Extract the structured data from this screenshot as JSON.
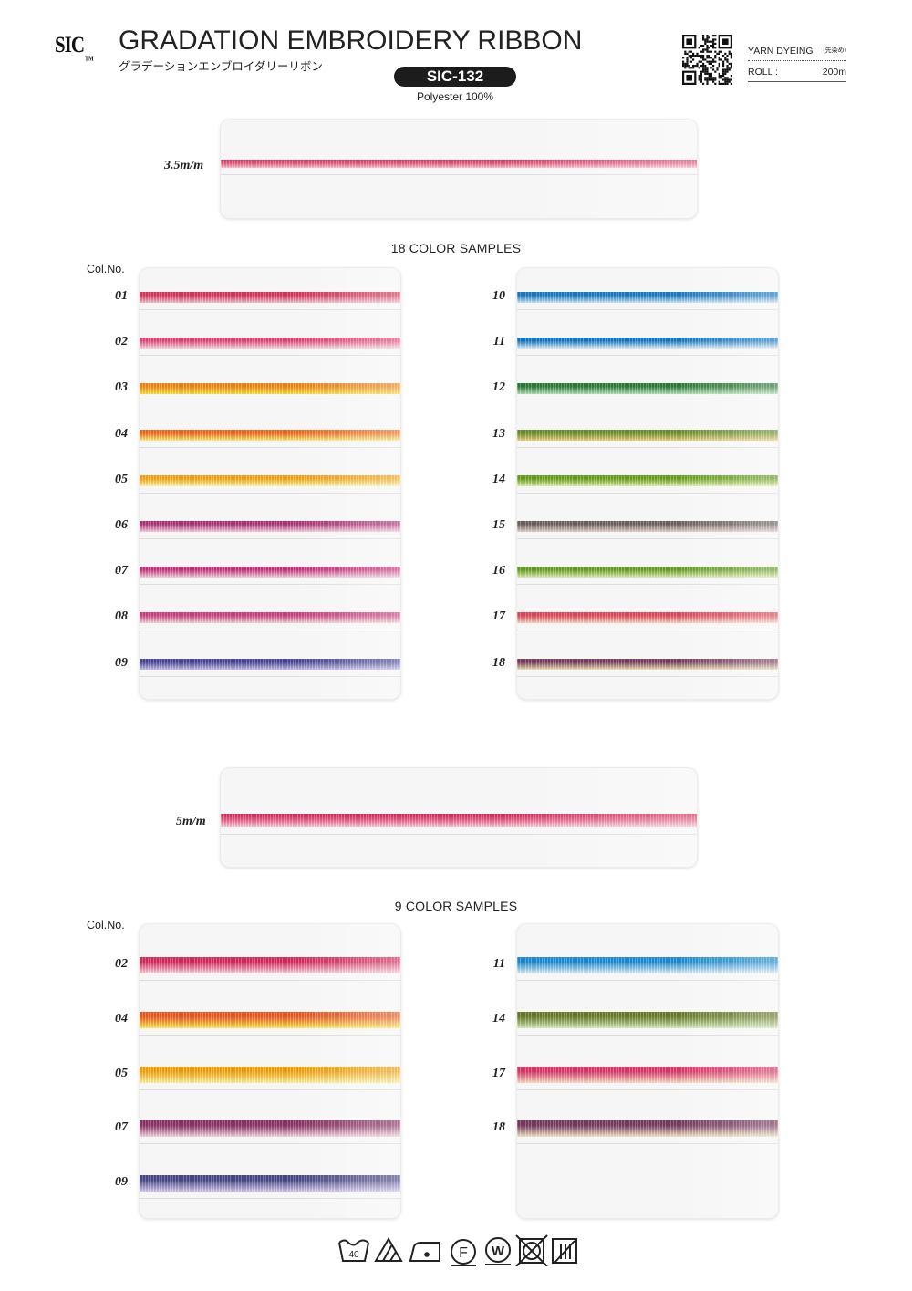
{
  "header": {
    "logo": "SIC",
    "logo_tm": "TM",
    "title": "GRADATION EMBROIDERY RIBBON",
    "subtitle_jp": "グラデーションエンブロイダリーリボン",
    "product_code": "SIC-132",
    "material": "Polyester 100%",
    "qr_icon": "qr-code-icon",
    "spec": {
      "dyeing_label": "YARN DYEING",
      "dyeing_note": "(先染め)",
      "roll_label": "ROLL :",
      "roll_value": "200m"
    }
  },
  "widths": {
    "w35": "3.5m/m",
    "w5": "5m/m"
  },
  "sections": {
    "s18": {
      "title": "18 COLOR SAMPLES",
      "colno": "Col.No.",
      "left": [
        {
          "no": "01",
          "top": "#d9375f",
          "bottom": "#f4c2cc"
        },
        {
          "no": "02",
          "top": "#e14a7a",
          "bottom": "#fbdde6"
        },
        {
          "no": "03",
          "top": "#f08a1e",
          "bottom": "#ffe23c"
        },
        {
          "no": "04",
          "top": "#ef6a1f",
          "bottom": "#fff37a"
        },
        {
          "no": "05",
          "top": "#f6a81a",
          "bottom": "#fff9a8"
        },
        {
          "no": "06",
          "top": "#b23677",
          "bottom": "#f8cfe1"
        },
        {
          "no": "07",
          "top": "#c8377c",
          "bottom": "#f6d6e4"
        },
        {
          "no": "08",
          "top": "#cf4382",
          "bottom": "#f3d9d9"
        },
        {
          "no": "09",
          "top": "#4a4896",
          "bottom": "#c9c2ee"
        }
      ],
      "right": [
        {
          "no": "10",
          "top": "#1a7cc7",
          "bottom": "#cfe8f7"
        },
        {
          "no": "11",
          "top": "#167bc5",
          "bottom": "#e7f3fb"
        },
        {
          "no": "12",
          "top": "#2f7d3b",
          "bottom": "#b6e3b6"
        },
        {
          "no": "13",
          "top": "#6d8f2f",
          "bottom": "#f2d57a"
        },
        {
          "no": "14",
          "top": "#6aa421",
          "bottom": "#e3f1a8"
        },
        {
          "no": "15",
          "top": "#6f6662",
          "bottom": "#ead4d0"
        },
        {
          "no": "16",
          "top": "#6aa22a",
          "bottom": "#e6f1b8"
        },
        {
          "no": "17",
          "top": "#e34a5c",
          "bottom": "#fbd8c8"
        },
        {
          "no": "18",
          "top": "#7a3f62",
          "bottom": "#f1e7b5"
        }
      ]
    },
    "s9": {
      "title": "9 COLOR SAMPLES",
      "colno": "Col.No.",
      "left": [
        {
          "no": "02",
          "top": "#d82d5f",
          "bottom": "#fbdbe4"
        },
        {
          "no": "04",
          "top": "#ee5a22",
          "bottom": "#fff25a"
        },
        {
          "no": "05",
          "top": "#f5a614",
          "bottom": "#fff6a0"
        },
        {
          "no": "07",
          "top": "#8c3565",
          "bottom": "#f7d6e5"
        },
        {
          "no": "09",
          "top": "#4b4a86",
          "bottom": "#d8ccf4"
        }
      ],
      "right": [
        {
          "no": "11",
          "top": "#1f8fd6",
          "bottom": "#e6f4fb"
        },
        {
          "no": "14",
          "top": "#6b7f2a",
          "bottom": "#d9efc0"
        },
        {
          "no": "17",
          "top": "#df3a6c",
          "bottom": "#fae1c8"
        },
        {
          "no": "18",
          "top": "#7a3b62",
          "bottom": "#f6ebc7"
        }
      ]
    }
  },
  "care": {
    "wash_temp": "40",
    "icons": [
      "wash-40-icon",
      "bleach-triangle-icon",
      "iron-low-icon",
      "dry-clean-f-icon",
      "wet-clean-w-icon",
      "no-tumble-dry-icon",
      "drip-dry-icon"
    ]
  }
}
